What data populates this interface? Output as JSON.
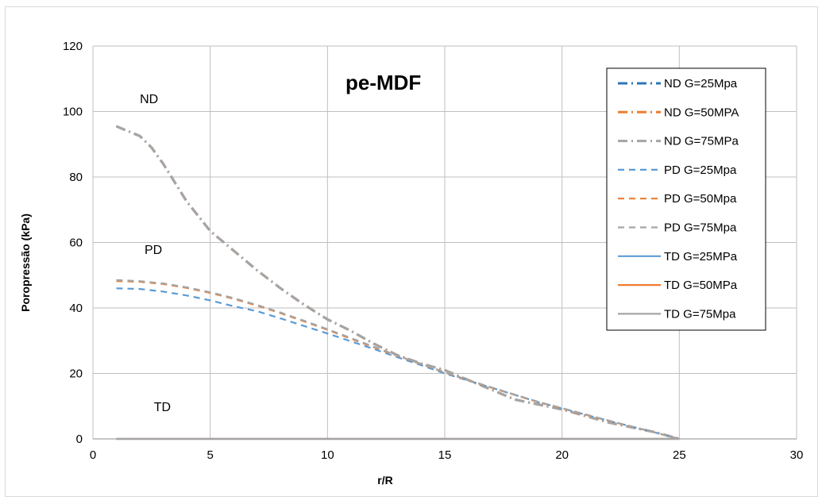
{
  "chart_data": {
    "type": "line",
    "title": "pe-MDF",
    "xlabel": "r/R",
    "ylabel": "Poropressão (kPa)",
    "xlim": [
      0,
      30
    ],
    "ylim": [
      0,
      120
    ],
    "xticks": [
      0,
      5,
      10,
      15,
      20,
      25,
      30
    ],
    "yticks": [
      0,
      20,
      40,
      60,
      80,
      100,
      120
    ],
    "grid": true,
    "legend_position": "top-right",
    "annotations": [
      {
        "text": "ND",
        "x": 2.0,
        "y": 102.5
      },
      {
        "text": "PD",
        "x": 2.2,
        "y": 56.5
      },
      {
        "text": "TD",
        "x": 2.6,
        "y": 8.5
      }
    ],
    "series": [
      {
        "name": "ND G=25Mpa",
        "color": "#2e75b6",
        "dash": "dashdot",
        "x": [
          1,
          2,
          2.5,
          3,
          4,
          5,
          6,
          7,
          8,
          9,
          10,
          11,
          12,
          13,
          14,
          15,
          16,
          17,
          18,
          19,
          20,
          21,
          22,
          23,
          24,
          25
        ],
        "y": [
          95.5,
          92.5,
          89,
          84,
          72.5,
          63.5,
          57.5,
          51.5,
          46,
          41,
          36.5,
          33,
          29,
          25.5,
          23,
          21,
          18,
          15,
          12,
          10.5,
          9,
          7,
          5,
          3.5,
          2,
          0
        ]
      },
      {
        "name": "ND G=50MPA",
        "color": "#ed7d31",
        "dash": "dashdot",
        "x": [
          1,
          2,
          2.5,
          3,
          4,
          5,
          6,
          7,
          8,
          9,
          10,
          11,
          12,
          13,
          14,
          15,
          16,
          17,
          18,
          19,
          20,
          21,
          22,
          23,
          24,
          25
        ],
        "y": [
          95.5,
          92.5,
          89,
          84,
          72.5,
          63.5,
          57.5,
          51.5,
          46,
          41,
          36.5,
          33,
          29,
          25.5,
          23,
          21,
          18,
          15,
          12,
          10.5,
          9,
          7,
          5,
          3.5,
          2,
          0
        ]
      },
      {
        "name": "ND G=75MPa",
        "color": "#a5a5a5",
        "dash": "dashdot",
        "x": [
          1,
          2,
          2.5,
          3,
          4,
          5,
          6,
          7,
          8,
          9,
          10,
          11,
          12,
          13,
          14,
          15,
          16,
          17,
          18,
          19,
          20,
          21,
          22,
          23,
          24,
          25
        ],
        "y": [
          95.5,
          92.5,
          89,
          84,
          72.5,
          63.5,
          57.5,
          51.5,
          46,
          41,
          36.5,
          33,
          29,
          25.5,
          23,
          21,
          18,
          15,
          12,
          10.5,
          9,
          7,
          5,
          3.5,
          2,
          0
        ]
      },
      {
        "name": "PD G=25Mpa",
        "color": "#5b9bd5",
        "dash": "dash",
        "x": [
          1,
          2,
          3,
          4,
          5,
          6,
          7,
          8,
          9,
          10,
          11,
          12,
          13,
          14,
          15,
          16,
          17,
          18,
          19,
          20,
          21,
          22,
          23,
          24,
          25
        ],
        "y": [
          46,
          45.8,
          45,
          43.8,
          42.3,
          40.5,
          39,
          36.8,
          34.5,
          32.2,
          29.8,
          27.4,
          24.9,
          22.5,
          20,
          17.8,
          15.6,
          13.4,
          11.2,
          9.3,
          7.4,
          5.5,
          3.7,
          1.9,
          0
        ]
      },
      {
        "name": "PD G=50Mpa",
        "color": "#ed7d31",
        "dash": "dash",
        "x": [
          1,
          2,
          3,
          4,
          5,
          6,
          7,
          8,
          9,
          10,
          11,
          12,
          13,
          14,
          15,
          16,
          17,
          18,
          19,
          20,
          21,
          22,
          23,
          24,
          25
        ],
        "y": [
          48.2,
          48,
          47.3,
          46.1,
          44.6,
          42.8,
          40.7,
          38.4,
          35.9,
          33.3,
          30.6,
          27.9,
          25.3,
          22.8,
          20.3,
          17.9,
          15.6,
          13.4,
          11.2,
          9.3,
          7.4,
          5.5,
          3.7,
          1.9,
          0
        ]
      },
      {
        "name": "PD G=75Mpa",
        "color": "#a5a5a5",
        "dash": "dash",
        "x": [
          1,
          2,
          3,
          4,
          5,
          6,
          7,
          8,
          9,
          10,
          11,
          12,
          13,
          14,
          15,
          16,
          17,
          18,
          19,
          20,
          21,
          22,
          23,
          24,
          25
        ],
        "y": [
          48.5,
          48.2,
          47.5,
          46.3,
          44.8,
          43,
          40.9,
          38.6,
          36.1,
          33.5,
          30.8,
          28.1,
          25.4,
          22.9,
          20.4,
          18,
          15.7,
          13.5,
          11.3,
          9.4,
          7.5,
          5.6,
          3.7,
          1.9,
          0
        ]
      },
      {
        "name": "TD G=25MPa",
        "color": "#5b9bd5",
        "dash": "solid",
        "x": [
          1,
          25
        ],
        "y": [
          0,
          0
        ]
      },
      {
        "name": "TD G=50MPa",
        "color": "#ed7d31",
        "dash": "solid",
        "x": [
          1,
          25
        ],
        "y": [
          0,
          0
        ]
      },
      {
        "name": "TD G=75Mpa",
        "color": "#a5a5a5",
        "dash": "solid",
        "x": [
          1,
          25
        ],
        "y": [
          0,
          0
        ]
      }
    ]
  }
}
